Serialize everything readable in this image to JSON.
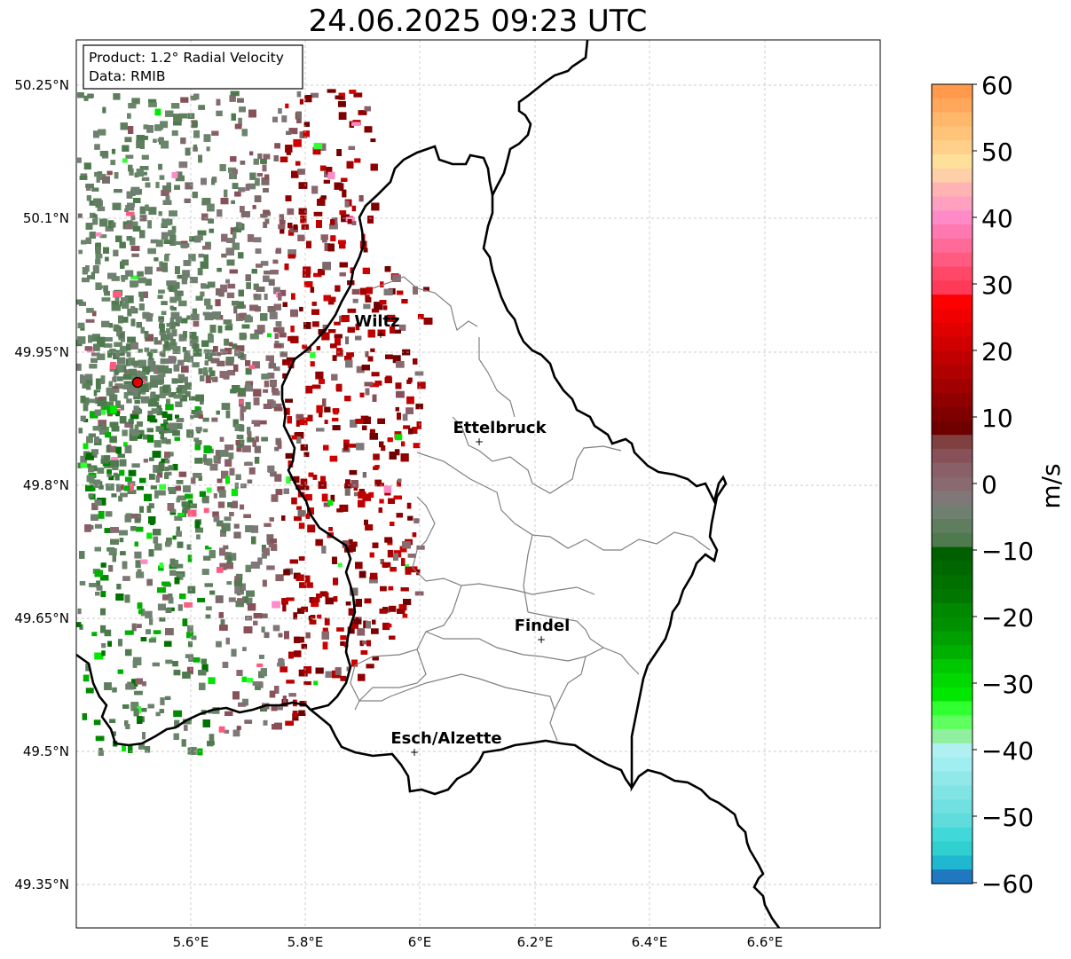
{
  "title": "24.06.2025 09:23 UTC",
  "info": {
    "product": "Product: 1.2° Radial Velocity",
    "data": "Data: RMIB"
  },
  "map": {
    "lat_ticks": [
      "50.25°N",
      "50.1°N",
      "49.95°N",
      "49.8°N",
      "49.65°N",
      "49.5°N",
      "49.35°N"
    ],
    "lon_ticks": [
      "5.6°E",
      "5.8°E",
      "6°E",
      "6.2°E",
      "6.4°E",
      "6.6°E"
    ],
    "lon_range": [
      5.4,
      6.8
    ],
    "lat_range": [
      49.3,
      50.3
    ],
    "gridlines": true,
    "radar_site": {
      "lon": 5.505,
      "lat": 49.914,
      "color": "#e00000"
    },
    "cities": [
      {
        "name": "Wiltz",
        "lon": 5.935,
        "lat": 49.966
      },
      {
        "name": "Ettelbruck",
        "lon": 6.103,
        "lat": 49.847
      },
      {
        "name": "Findel",
        "lon": 6.211,
        "lat": 49.624
      },
      {
        "name": "Esch/Alzette",
        "lon": 5.987,
        "lat": 49.496
      }
    ]
  },
  "colorbar": {
    "label": "m/s",
    "min": -60,
    "max": 60,
    "ticks": [
      "60",
      "50",
      "40",
      "30",
      "20",
      "10",
      "0",
      "−10",
      "−20",
      "−30",
      "−40",
      "−50",
      "−60"
    ],
    "colors": [
      "#ff9a4d",
      "#ffa85c",
      "#ffb86b",
      "#ffc47a",
      "#ffd08a",
      "#ffe09a",
      "#ffd0a8",
      "#ffb3b3",
      "#ffa0c0",
      "#ff8ac8",
      "#ff78b0",
      "#ff6a98",
      "#ff5a80",
      "#ff4868",
      "#ff3a58",
      "#ff0000",
      "#f00000",
      "#e00000",
      "#d00000",
      "#c00000",
      "#b00000",
      "#a00000",
      "#900000",
      "#800000",
      "#700000",
      "#804040",
      "#885058",
      "#8a6068",
      "#886a70",
      "#807878",
      "#708070",
      "#5e7e5e",
      "#4e7a4e",
      "#006000",
      "#006800",
      "#007000",
      "#007800",
      "#008800",
      "#009000",
      "#00a000",
      "#00b000",
      "#00c800",
      "#00d800",
      "#00e800",
      "#30ff30",
      "#60ff60",
      "#90f0a0",
      "#b0f0f0",
      "#a0eef0",
      "#90e8e8",
      "#80e4e4",
      "#70e0e0",
      "#60dcdc",
      "#40d8d8",
      "#30d0d0",
      "#20b8d0",
      "#1f78c0"
    ]
  }
}
